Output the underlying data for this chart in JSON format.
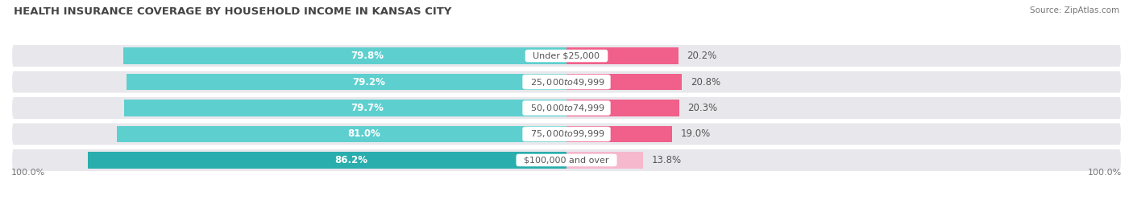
{
  "title": "HEALTH INSURANCE COVERAGE BY HOUSEHOLD INCOME IN KANSAS CITY",
  "source": "Source: ZipAtlas.com",
  "categories": [
    "Under $25,000",
    "$25,000 to $49,999",
    "$50,000 to $74,999",
    "$75,000 to $99,999",
    "$100,000 and over"
  ],
  "with_coverage": [
    79.8,
    79.2,
    79.7,
    81.0,
    86.2
  ],
  "without_coverage": [
    20.2,
    20.8,
    20.3,
    19.0,
    13.8
  ],
  "color_with": [
    "#5dcfcf",
    "#5dcfcf",
    "#5dcfcf",
    "#5dcfcf",
    "#2aadad"
  ],
  "color_without": [
    "#f0608a",
    "#f0608a",
    "#f0608a",
    "#f0608a",
    "#f5b8cc"
  ],
  "bar_bg_color": "#e8e8ec",
  "background_color": "#ffffff",
  "title_color": "#444444",
  "label_color_inside": "#ffffff",
  "label_color_outside": "#555555",
  "legend_with_color": "#5dcfcf",
  "legend_without_color": "#f0608a",
  "axis_label_color": "#777777",
  "bar_height": 0.62,
  "note": "diverging bar: left=with_coverage (max 100), right=without_coverage (max 100). Center label at x=0. xlim=-100 to 100"
}
